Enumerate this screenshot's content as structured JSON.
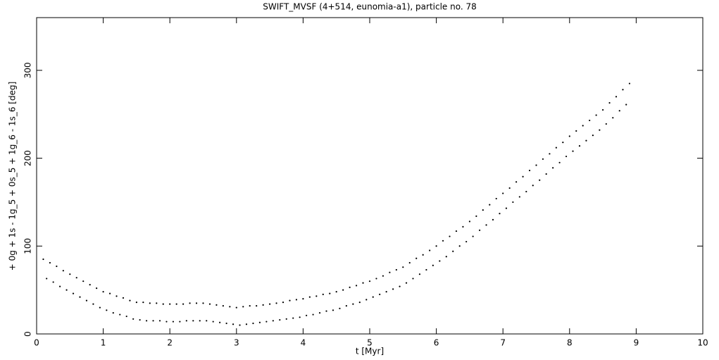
{
  "chart_data": {
    "type": "scatter",
    "title": "SWIFT_MVSF (4+514, eunomia-a1), particle no. 78",
    "x_label": "t [Myr]",
    "y_label": "+ 0g + 1s - 1g_5 + 0s_5 + 1g_6 - 1s_6 [deg]",
    "color": "#000000",
    "xlim": [
      0,
      10
    ],
    "xticks": [
      0,
      1,
      2,
      3,
      4,
      5,
      6,
      7,
      8,
      9,
      10
    ],
    "ylim": [
      0,
      360
    ],
    "yticks": [
      0,
      100,
      200,
      300
    ],
    "x": [
      0.1,
      0.15,
      0.2,
      0.25,
      0.3,
      0.35,
      0.4,
      0.45,
      0.5,
      0.55,
      0.6,
      0.65,
      0.7,
      0.75,
      0.8,
      0.85,
      0.9,
      0.95,
      1.0,
      1.05,
      1.1,
      1.15,
      1.2,
      1.25,
      1.3,
      1.35,
      1.4,
      1.45,
      1.5,
      1.55,
      1.6,
      1.65,
      1.7,
      1.75,
      1.8,
      1.85,
      1.9,
      1.95,
      2.0,
      2.05,
      2.1,
      2.15,
      2.2,
      2.25,
      2.3,
      2.35,
      2.4,
      2.45,
      2.5,
      2.55,
      2.6,
      2.65,
      2.7,
      2.75,
      2.8,
      2.85,
      2.9,
      2.95,
      3.0,
      3.05,
      3.1,
      3.15,
      3.2,
      3.25,
      3.3,
      3.35,
      3.4,
      3.45,
      3.5,
      3.55,
      3.6,
      3.65,
      3.7,
      3.75,
      3.8,
      3.85,
      3.9,
      3.95,
      4.0,
      4.05,
      4.1,
      4.15,
      4.2,
      4.25,
      4.3,
      4.35,
      4.4,
      4.45,
      4.5,
      4.55,
      4.6,
      4.65,
      4.7,
      4.75,
      4.8,
      4.85,
      4.9,
      4.95,
      5.0,
      5.05,
      5.1,
      5.15,
      5.2,
      5.25,
      5.3,
      5.35,
      5.4,
      5.45,
      5.5,
      5.55,
      5.6,
      5.65,
      5.7,
      5.75,
      5.8,
      5.85,
      5.9,
      5.95,
      6.0,
      6.05,
      6.1,
      6.15,
      6.2,
      6.25,
      6.3,
      6.35,
      6.4,
      6.45,
      6.5,
      6.55,
      6.6,
      6.65,
      6.7,
      6.75,
      6.8,
      6.85,
      6.9,
      6.95,
      7.0,
      7.05,
      7.1,
      7.15,
      7.2,
      7.25,
      7.3,
      7.35,
      7.4,
      7.45,
      7.5,
      7.55,
      7.6,
      7.65,
      7.7,
      7.75,
      7.8,
      7.85,
      7.9,
      7.95,
      8.0,
      8.05,
      8.1,
      8.15,
      8.2,
      8.25,
      8.3,
      8.35,
      8.4,
      8.45,
      8.5,
      8.55,
      8.6,
      8.65,
      8.7,
      8.75,
      8.8,
      8.85,
      8.9
    ],
    "values": [
      85,
      63,
      81,
      59,
      77,
      54,
      72,
      50,
      68,
      46,
      64,
      42,
      60,
      38,
      56,
      34,
      52,
      30,
      48,
      27,
      46,
      24,
      43,
      22,
      41,
      20,
      38,
      17,
      36,
      16,
      36,
      15,
      35,
      15,
      35,
      15,
      34,
      14,
      34,
      14,
      34,
      14,
      34,
      15,
      35,
      15,
      35,
      15,
      35,
      15,
      34,
      14,
      33,
      13,
      32,
      12,
      31,
      11,
      30,
      10,
      31,
      11,
      32,
      12,
      32,
      13,
      33,
      14,
      34,
      15,
      35,
      16,
      36,
      17,
      38,
      18,
      39,
      19,
      40,
      21,
      42,
      22,
      43,
      24,
      45,
      26,
      46,
      27,
      48,
      29,
      50,
      32,
      53,
      34,
      55,
      36,
      58,
      39,
      60,
      42,
      63,
      45,
      66,
      48,
      70,
      51,
      73,
      54,
      76,
      58,
      81,
      63,
      86,
      68,
      90,
      73,
      95,
      78,
      100,
      83,
      106,
      88,
      111,
      94,
      117,
      100,
      122,
      105,
      128,
      111,
      134,
      118,
      141,
      124,
      147,
      130,
      154,
      137,
      160,
      143,
      166,
      150,
      173,
      156,
      179,
      162,
      186,
      169,
      192,
      175,
      199,
      182,
      205,
      189,
      212,
      195,
      218,
      202,
      225,
      208,
      231,
      214,
      237,
      220,
      243,
      226,
      249,
      232,
      255,
      239,
      263,
      246,
      270,
      254,
      278,
      261,
      285
    ]
  }
}
